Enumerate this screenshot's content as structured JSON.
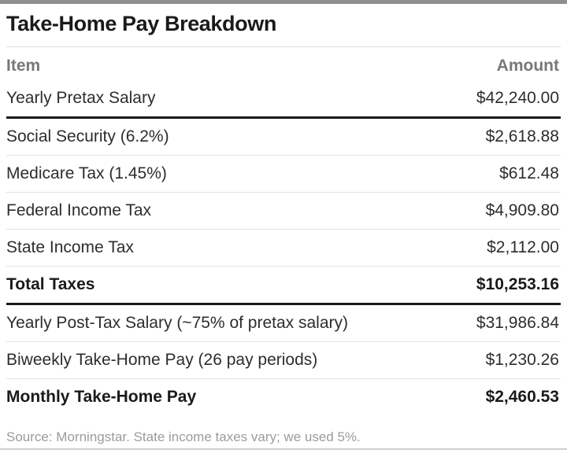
{
  "page": {
    "title": "Take-Home Pay Breakdown",
    "source_note": "Source: Morningstar. State income taxes vary; we used 5%."
  },
  "table": {
    "header": {
      "item": "Item",
      "amount": "Amount"
    },
    "rows": [
      {
        "item": "Yearly Pretax Salary",
        "amount": "$42,240.00",
        "emphasis": false
      },
      {
        "item": "Social Security (6.2%)",
        "amount": "$2,618.88",
        "emphasis": false
      },
      {
        "item": "Medicare Tax (1.45%)",
        "amount": "$612.48",
        "emphasis": false
      },
      {
        "item": "Federal Income Tax",
        "amount": "$4,909.80",
        "emphasis": false
      },
      {
        "item": "State Income Tax",
        "amount": "$2,112.00",
        "emphasis": false
      },
      {
        "item": "Total Taxes",
        "amount": "$10,253.16",
        "emphasis": true
      },
      {
        "item": "Yearly Post-Tax Salary (~75% of pretax salary)",
        "amount": "$31,986.84",
        "emphasis": false
      },
      {
        "item": "Biweekly Take-Home Pay (26 pay periods)",
        "amount": "$1,230.26",
        "emphasis": false
      },
      {
        "item": "Monthly Take-Home Pay",
        "amount": "$2,460.53",
        "emphasis": true
      }
    ]
  },
  "colors": {
    "heading_text": "#1a1a1a",
    "body_text": "#2d2d2e",
    "column_header_text": "#77787b",
    "muted_text": "#9b9b9b",
    "rule_dark": "#1a1a1a",
    "rule_light": "#e3e3e3",
    "rule_frame_top": "#8f8f8f",
    "rule_frame_bottom": "#cfcfcf"
  },
  "chart_data": {
    "type": "table",
    "title": "Take-Home Pay Breakdown",
    "columns": [
      "Item",
      "Amount"
    ],
    "rows": [
      [
        "Yearly Pretax Salary",
        42240.0
      ],
      [
        "Social Security (6.2%)",
        2618.88
      ],
      [
        "Medicare Tax (1.45%)",
        612.48
      ],
      [
        "Federal Income Tax",
        4909.8
      ],
      [
        "State Income Tax",
        2112.0
      ],
      [
        "Total Taxes",
        10253.16
      ],
      [
        "Yearly Post-Tax Salary (~75% of pretax salary)",
        31986.84
      ],
      [
        "Biweekly Take-Home Pay (26 pay periods)",
        1230.26
      ],
      [
        "Monthly Take-Home Pay",
        2460.53
      ]
    ],
    "emphasized_rows": [
      "Total Taxes",
      "Monthly Take-Home Pay"
    ],
    "thick_rules_below": [
      "Yearly Pretax Salary",
      "Total Taxes"
    ],
    "source_note": "Source: Morningstar. State income taxes vary; we used 5%."
  }
}
